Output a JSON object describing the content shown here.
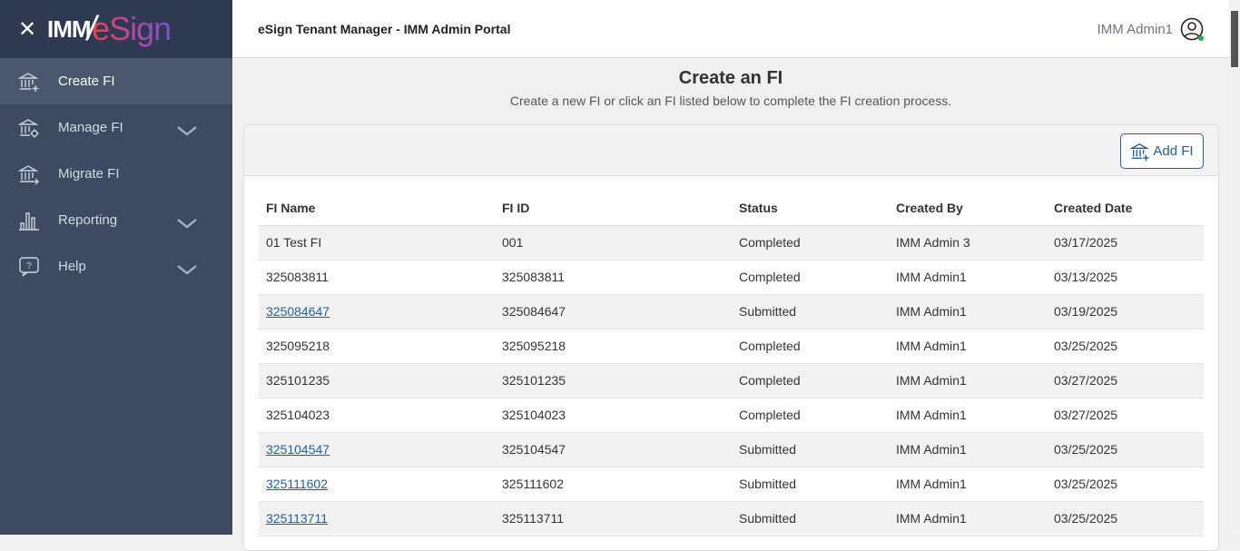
{
  "sidebar": {
    "logo": {
      "part1": "IMM",
      "part2": "eSign"
    },
    "items": [
      {
        "label": "Create FI",
        "icon": "bank-plus-icon",
        "active": true,
        "expandable": false
      },
      {
        "label": "Manage FI",
        "icon": "bank-gear-icon",
        "expandable": true
      },
      {
        "label": "Migrate FI",
        "icon": "bank-arrow-icon",
        "expandable": false
      },
      {
        "label": "Reporting",
        "icon": "bar-chart-icon",
        "expandable": true
      },
      {
        "label": "Help",
        "icon": "help-bubble-icon",
        "expandable": true
      }
    ]
  },
  "header": {
    "title": "eSign Tenant Manager - IMM Admin Portal",
    "user": "IMM Admin1"
  },
  "main": {
    "title": "Create an FI",
    "subtitle": "Create a new FI or click an FI listed below to complete the FI creation process.",
    "add_label": "Add FI",
    "columns": [
      "FI Name",
      "FI ID",
      "Status",
      "Created By",
      "Created Date"
    ],
    "rows": [
      [
        "01 Test FI",
        "001",
        "Completed",
        "IMM Admin 3",
        "03/17/2025",
        false
      ],
      [
        "325083811",
        "325083811",
        "Completed",
        "IMM Admin1",
        "03/13/2025",
        false
      ],
      [
        "325084647",
        "325084647",
        "Submitted",
        "IMM Admin1",
        "03/19/2025",
        true
      ],
      [
        "325095218",
        "325095218",
        "Completed",
        "IMM Admin1",
        "03/25/2025",
        false
      ],
      [
        "325101235",
        "325101235",
        "Completed",
        "IMM Admin1",
        "03/27/2025",
        false
      ],
      [
        "325104023",
        "325104023",
        "Completed",
        "IMM Admin1",
        "03/27/2025",
        false
      ],
      [
        "325104547",
        "325104547",
        "Submitted",
        "IMM Admin1",
        "03/25/2025",
        true
      ],
      [
        "325111602",
        "325111602",
        "Submitted",
        "IMM Admin1",
        "03/25/2025",
        true
      ],
      [
        "325113711",
        "325113711",
        "Submitted",
        "IMM Admin1",
        "03/25/2025",
        true
      ]
    ]
  },
  "colors": {
    "sidebar": "#3d4a62",
    "link": "#1f5f9e",
    "online": "#22b24c"
  }
}
